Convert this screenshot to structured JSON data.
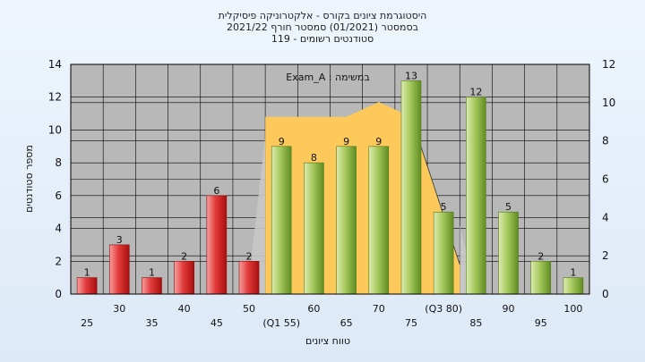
{
  "chart_data": {
    "type": "bar",
    "title_lines": [
      "היסטוגרמת ציונים בקורס - אלקטרוניקה פיסיקלית",
      "בסמסטר  (01/2021)  סמסטר חורף  2021/22",
      "סטודנטים רשומים - 119"
    ],
    "annotation": "במשימה : Exam_A",
    "xlabel": "טווח ציונים",
    "ylabel": "מספר סטודנטים",
    "ylim": [
      0,
      14
    ],
    "y2lim": [
      0,
      12
    ],
    "y_ticks": [
      "0",
      "2",
      "4",
      "6",
      "8",
      "10",
      "12",
      "14"
    ],
    "y2_ticks": [
      "0",
      "2",
      "4",
      "6",
      "8",
      "10",
      "12"
    ],
    "grid": true,
    "categories": [
      "25",
      "30",
      "35",
      "40",
      "45",
      "50",
      "(Q1 55)",
      "60",
      "65",
      "70",
      "75",
      "(Q3 80)",
      "85",
      "90",
      "95",
      "100"
    ],
    "values": [
      1,
      3,
      1,
      2,
      6,
      2,
      9,
      8,
      9,
      9,
      13,
      5,
      12,
      5,
      2,
      1
    ],
    "value_labels": [
      "1",
      "3",
      "1",
      "2",
      "6",
      "2",
      "9",
      "8",
      "9",
      "9",
      "13",
      "5",
      "12",
      "5",
      "2",
      "1"
    ],
    "bar_colors": [
      "red",
      "red",
      "red",
      "red",
      "red",
      "red",
      "green",
      "green",
      "green",
      "green",
      "green",
      "green",
      "green",
      "green",
      "green",
      "green"
    ],
    "colors": {
      "red_light": "#f26a6a",
      "red_dark": "#c41515",
      "green_light": "#c8e08a",
      "green_dark": "#6e9e2a",
      "iqr_fill": "#fcc95a",
      "outer_fill": "#c8c8c8",
      "plot_bg": "#b8b8b8",
      "grid": "#000000"
    }
  }
}
